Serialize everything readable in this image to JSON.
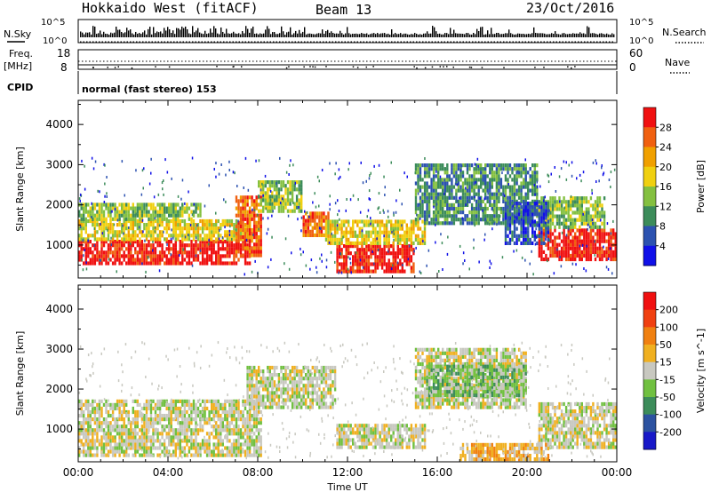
{
  "header": {
    "title": "Hokkaido West (fitACF)",
    "beam": "Beam 13",
    "date": "23/Oct/2016"
  },
  "top_panel": {
    "nsky_label": "N.Sky",
    "nsky_ticks": [
      "10^5",
      "10^0"
    ],
    "nsearch_label": "N.Search",
    "nsearch_ticks": [
      "10^5",
      "10^0"
    ],
    "freq_label": "Freq.",
    "freq_unit": "[MHz]",
    "freq_ticks": [
      "18",
      "8"
    ],
    "nave_label": "Nave",
    "nave_ticks": [
      "60",
      "0"
    ],
    "cpid_label": "CPID",
    "cpid_text": "normal (fast stereo) 153"
  },
  "chart_data": [
    {
      "type": "heatmap",
      "name": "power",
      "ylabel": "Slant Range [km]",
      "yticks": [
        "1000",
        "2000",
        "3000",
        "4000"
      ],
      "ylim": [
        180,
        4600
      ],
      "xlim_hours": [
        0,
        24
      ],
      "colorbar_label": "Power [dB]",
      "colorbar_ticks": [
        "4",
        "8",
        "12",
        "16",
        "20",
        "24",
        "28"
      ],
      "colorbar_colors": [
        "#1010e8",
        "#2c52b0",
        "#3c8c5a",
        "#84c040",
        "#f0d010",
        "#f0a000",
        "#f06010",
        "#f01010"
      ],
      "regions": [
        {
          "t0": 0.0,
          "t1": 7.7,
          "r0": 500,
          "r1": 1100,
          "level": 7
        },
        {
          "t0": 0.0,
          "t1": 7.7,
          "r0": 1100,
          "r1": 1600,
          "level": 4
        },
        {
          "t0": 0.0,
          "t1": 5.5,
          "r0": 1600,
          "r1": 2000,
          "level": 3
        },
        {
          "t0": 7.0,
          "t1": 8.2,
          "r0": 700,
          "r1": 2200,
          "level": 6
        },
        {
          "t0": 8.0,
          "t1": 10.0,
          "r0": 1800,
          "r1": 2600,
          "level": 3
        },
        {
          "t0": 10.0,
          "t1": 11.2,
          "r0": 1200,
          "r1": 1800,
          "level": 6
        },
        {
          "t0": 11.5,
          "t1": 15.0,
          "r0": 300,
          "r1": 1000,
          "level": 7
        },
        {
          "t0": 11.0,
          "t1": 15.5,
          "r0": 1000,
          "r1": 1600,
          "level": 4
        },
        {
          "t0": 15.0,
          "t1": 20.5,
          "r0": 1500,
          "r1": 3000,
          "level": 2
        },
        {
          "t0": 20.5,
          "t1": 24.0,
          "r0": 600,
          "r1": 1400,
          "level": 7
        },
        {
          "t0": 20.5,
          "t1": 23.5,
          "r0": 1400,
          "r1": 2200,
          "level": 3
        },
        {
          "t0": 19.0,
          "t1": 21.0,
          "r0": 1000,
          "r1": 2000,
          "level": 1
        }
      ]
    },
    {
      "type": "heatmap",
      "name": "velocity",
      "ylabel": "Slant Range [km]",
      "yticks": [
        "1000",
        "2000",
        "3000",
        "4000"
      ],
      "ylim": [
        180,
        4600
      ],
      "xlabel": "Time UT",
      "xticks": [
        "00:00",
        "04:00",
        "08:00",
        "12:00",
        "16:00",
        "20:00",
        "00:00"
      ],
      "xlim_hours": [
        0,
        24
      ],
      "colorbar_label": "Velocity [m s^-1]",
      "colorbar_ticks": [
        "200",
        "100",
        "50",
        "15",
        "-15",
        "-50",
        "-100",
        "-200"
      ],
      "colorbar_colors": [
        "#1818c8",
        "#2c52a0",
        "#3c8c5a",
        "#70c040",
        "#c8c8c0",
        "#f0b020",
        "#f08010",
        "#f04010",
        "#f01010"
      ],
      "regions": [
        {
          "t0": 0.0,
          "t1": 8.2,
          "r0": 300,
          "r1": 1700,
          "level": 4
        },
        {
          "t0": 7.5,
          "t1": 11.5,
          "r0": 1500,
          "r1": 2500,
          "level": 4
        },
        {
          "t0": 11.5,
          "t1": 15.5,
          "r0": 500,
          "r1": 1100,
          "level": 4
        },
        {
          "t0": 15.0,
          "t1": 20.0,
          "r0": 1500,
          "r1": 3000,
          "level": 4
        },
        {
          "t0": 20.5,
          "t1": 24.0,
          "r0": 500,
          "r1": 1600,
          "level": 4
        },
        {
          "t0": 17.0,
          "t1": 21.0,
          "r0": 200,
          "r1": 600,
          "level": 5
        },
        {
          "t0": 15.5,
          "t1": 20.0,
          "r0": 1800,
          "r1": 2600,
          "level": 3
        }
      ]
    }
  ]
}
